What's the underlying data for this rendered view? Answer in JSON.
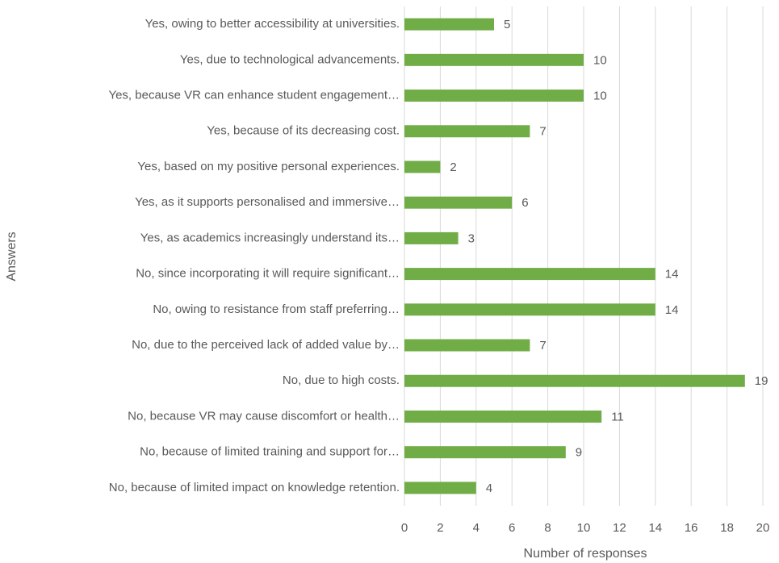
{
  "chart_data": {
    "type": "hbar",
    "categories": [
      "Yes, owing to better accessibility at universities.",
      "Yes, due to technological advancements.",
      "Yes, because VR can enhance student engagement…",
      "Yes, because of its decreasing cost.",
      "Yes, based on my positive personal experiences.",
      "Yes, as it supports personalised and immersive…",
      "Yes, as academics increasingly understand its…",
      "No, since incorporating it will require significant…",
      "No, owing to resistance from staff preferring…",
      "No, due to the perceived lack of added value by…",
      "No, due to high costs.",
      "No, because VR may cause discomfort or health…",
      "No, because of limited training and support for…",
      "No, because of limited impact on knowledge retention."
    ],
    "values": [
      5,
      10,
      10,
      7,
      2,
      6,
      3,
      14,
      14,
      7,
      19,
      11,
      9,
      4
    ],
    "color": "#70ad47",
    "xlabel": "Number of responses",
    "ylabel": "Answers",
    "xlim": [
      0,
      20
    ],
    "xticks": [
      0,
      2,
      4,
      6,
      8,
      10,
      12,
      14,
      16,
      18,
      20
    ],
    "grid": true
  }
}
